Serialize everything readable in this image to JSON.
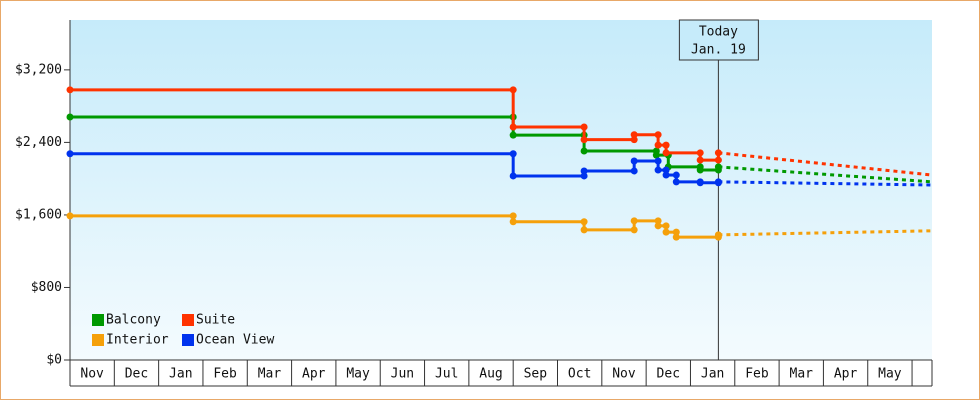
{
  "chart_data": {
    "type": "step-line",
    "categories": [
      "Nov",
      "Dec",
      "Jan",
      "Feb",
      "Mar",
      "Apr",
      "May",
      "Jun",
      "Jul",
      "Aug",
      "Sep",
      "Oct",
      "Nov",
      "Dec",
      "Jan",
      "Feb",
      "Mar",
      "Apr",
      "May",
      null
    ],
    "xlim": [
      0,
      19.45
    ],
    "ylim": [
      0,
      3750
    ],
    "yticks": [
      {
        "value": 0,
        "label": "$0"
      },
      {
        "value": 800,
        "label": "$800"
      },
      {
        "value": 1600,
        "label": "$1,600"
      },
      {
        "value": 2400,
        "label": "$2,400"
      },
      {
        "value": 3200,
        "label": "$3,200"
      }
    ],
    "legend": "lower-left",
    "today": {
      "x": 14.63,
      "label": [
        "Today",
        "Jan. 19"
      ]
    },
    "series": [
      {
        "name": "Balcony",
        "color": "#009900",
        "x": [
          0,
          10.0,
          11.6,
          13.23,
          13.5,
          14.22,
          14.63
        ],
        "values": [
          2680,
          2480,
          2305,
          2260,
          2130,
          2095,
          2130
        ],
        "forecast": {
          "x": 19.45,
          "value": 1965
        }
      },
      {
        "name": "Suite",
        "color": "#ff3300",
        "x": [
          0,
          10.0,
          11.6,
          12.73,
          13.27,
          13.45,
          14.22,
          14.63
        ],
        "values": [
          2980,
          2570,
          2430,
          2485,
          2370,
          2285,
          2205,
          2285
        ],
        "forecast": {
          "x": 19.45,
          "value": 2040
        }
      },
      {
        "name": "Interior",
        "color": "#f5a00a",
        "x": [
          0,
          10.0,
          11.6,
          12.73,
          13.27,
          13.45,
          13.68,
          14.63
        ],
        "values": [
          1590,
          1525,
          1435,
          1535,
          1480,
          1410,
          1355,
          1380
        ],
        "forecast": {
          "x": 19.45,
          "value": 1425
        }
      },
      {
        "name": "Ocean View",
        "color": "#0033ee",
        "x": [
          0,
          10.0,
          11.6,
          12.73,
          13.27,
          13.45,
          13.68,
          14.22,
          14.63
        ],
        "values": [
          2275,
          2030,
          2085,
          2195,
          2095,
          2040,
          1965,
          1955,
          1965
        ],
        "forecast": {
          "x": 19.45,
          "value": 1930
        }
      }
    ]
  }
}
